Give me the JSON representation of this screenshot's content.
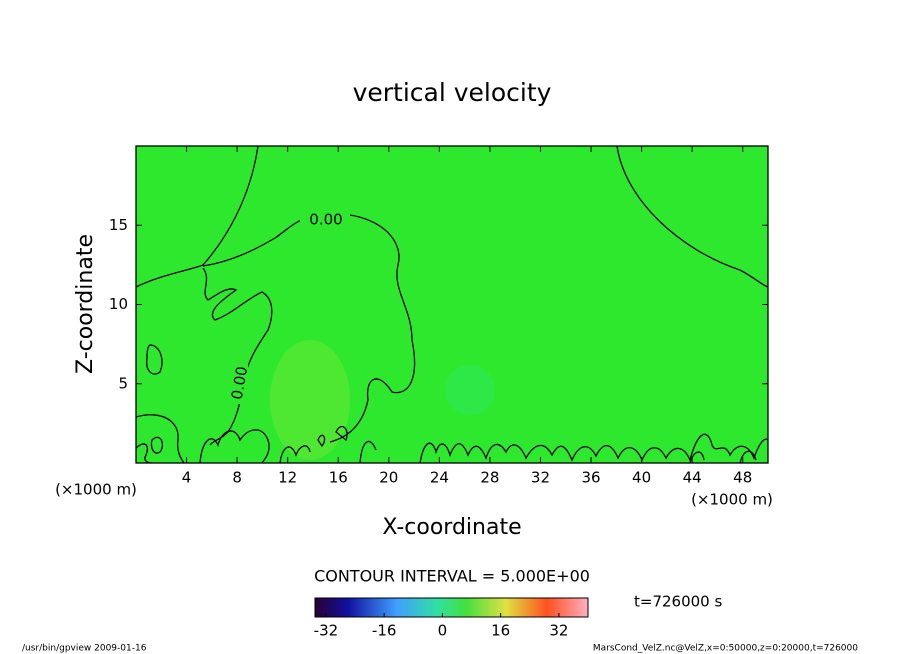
{
  "chart_data": {
    "type": "contour",
    "title": "vertical velocity",
    "xlabel": "X-coordinate",
    "ylabel": "Z-coordinate",
    "x_unit": "(×1000 m)",
    "y_unit": "(×1000 m)",
    "xlim": [
      0,
      50
    ],
    "xticks": [
      4,
      8,
      12,
      16,
      20,
      24,
      28,
      32,
      36,
      40,
      44,
      48
    ],
    "ylim": [
      0,
      20
    ],
    "yticks": [
      5,
      10,
      15
    ],
    "fill_color": "#2ee82e",
    "contour_labels": [
      "0.00",
      "0.00"
    ],
    "contour_interval_text": "CONTOUR INTERVAL = 5.000E+00",
    "clim": [
      -35,
      40
    ],
    "cticks": [
      -32,
      -16,
      0,
      16,
      32
    ],
    "time_label": "t=726000 s",
    "footer_left": "/usr/bin/gpview  2009-01-16",
    "footer_right": "MarsCond_VelZ.nc@VelZ,x=0:50000,z=0:20000,t=726000"
  }
}
